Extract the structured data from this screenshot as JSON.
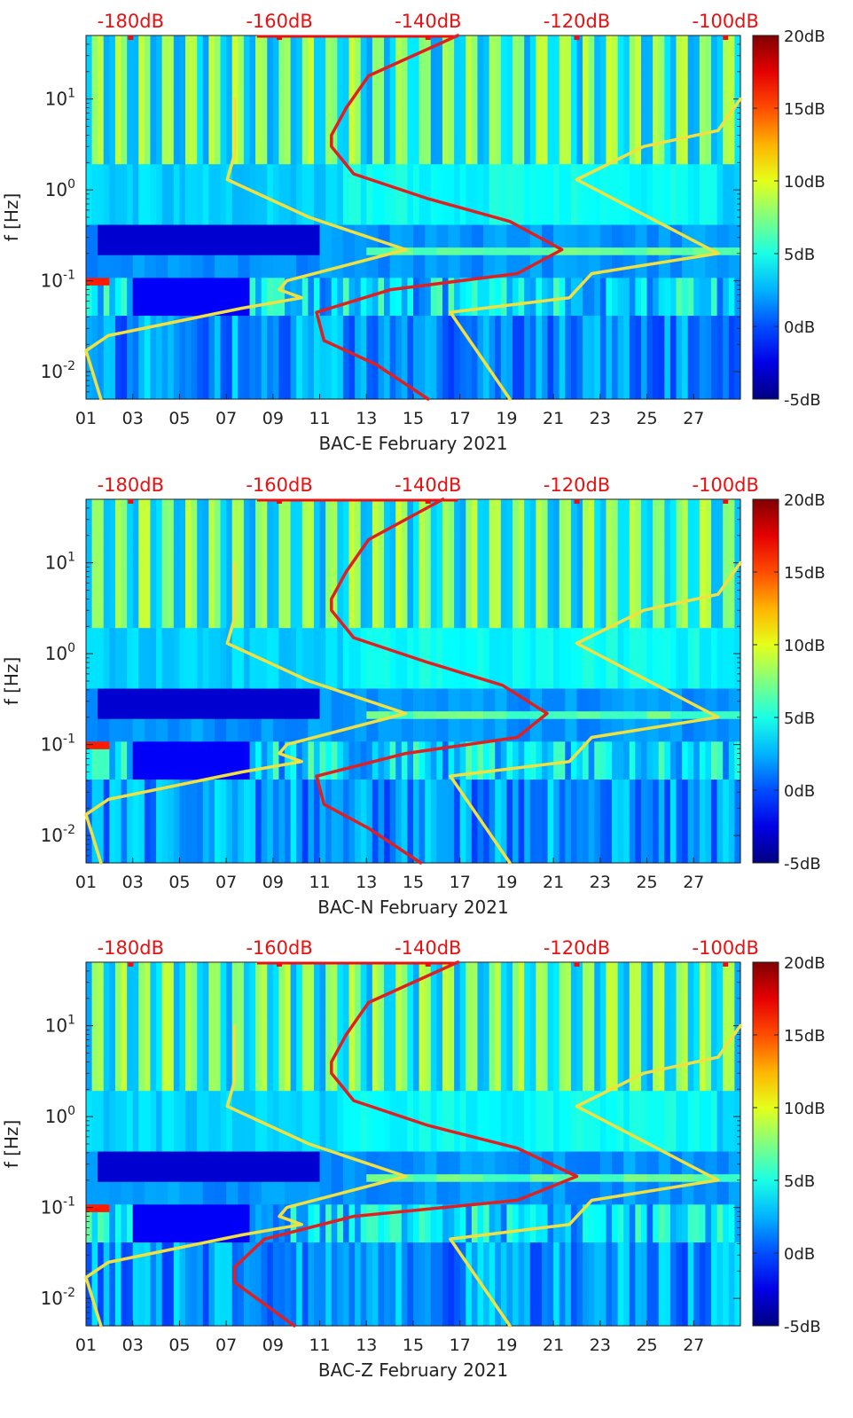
{
  "chart_data": [
    {
      "type": "heatmap",
      "title": "",
      "xlabel": "BAC-E February 2021",
      "ylabel": "f [Hz]",
      "x_unit": "day of February 2021",
      "x_ticks": [
        "01",
        "03",
        "05",
        "07",
        "09",
        "11",
        "13",
        "15",
        "17",
        "19",
        "21",
        "23",
        "25",
        "27"
      ],
      "xlim": [
        1,
        29
      ],
      "y_scale": "log",
      "ylim": [
        0.005,
        50
      ],
      "y_ticks": [
        "10^-2",
        "10^-1",
        "10^0",
        "10^1"
      ],
      "top_axis_ticks": [
        "-180dB",
        "-160dB",
        "-140dB",
        "-120dB",
        "-100dB"
      ],
      "top_axis_range_dB": [
        -186,
        -98
      ],
      "colorbar": {
        "ticks": [
          "20dB",
          "15dB",
          "10dB",
          "5dB",
          "0dB",
          "-5dB"
        ],
        "range_dB": [
          -5,
          20
        ],
        "colormap": "jet"
      },
      "line_colors": {
        "noise_models": "#f0e040",
        "median_psd": "#e02020",
        "top_axis": "#e81010"
      },
      "series": [
        {
          "name": "",
          "style": "noise-model-low",
          "color": "#f0e040",
          "points": [
            [
              -166,
              10
            ],
            [
              -166,
              2.5
            ],
            [
              -167,
              1.3
            ],
            [
              -156,
              0.5
            ],
            [
              -143,
              0.22
            ],
            [
              -159,
              0.1
            ],
            [
              -160,
              0.08
            ],
            [
              -157,
              0.065
            ],
            [
              -165,
              0.05
            ],
            [
              -183,
              0.025
            ],
            [
              -186,
              0.017
            ],
            [
              -184,
              0.005
            ]
          ]
        },
        {
          "name": "",
          "style": "noise-model-high",
          "color": "#f0e040",
          "points": [
            [
              -98,
              10
            ],
            [
              -101,
              4.5
            ],
            [
              -111,
              3
            ],
            [
              -120,
              1.3
            ],
            [
              -101,
              0.2
            ],
            [
              -118,
              0.12
            ],
            [
              -121,
              0.065
            ],
            [
              -137,
              0.045
            ],
            [
              -129,
              0.005
            ]
          ]
        },
        {
          "name": "",
          "style": "median-psd",
          "color": "#e02020",
          "points": [
            [
              -136,
              50
            ],
            [
              -148,
              18
            ],
            [
              -151,
              8
            ],
            [
              -153,
              4
            ],
            [
              -153,
              3
            ],
            [
              -150,
              1.5
            ],
            [
              -140,
              0.8
            ],
            [
              -129,
              0.45
            ],
            [
              -122,
              0.22
            ],
            [
              -128,
              0.12
            ],
            [
              -145,
              0.08
            ],
            [
              -155,
              0.045
            ],
            [
              -154,
              0.022
            ],
            [
              -147,
              0.012
            ],
            [
              -140,
              0.005
            ]
          ]
        }
      ]
    },
    {
      "type": "heatmap",
      "title": "",
      "xlabel": "BAC-N February 2021",
      "ylabel": "f [Hz]",
      "x_unit": "day of February 2021",
      "x_ticks": [
        "01",
        "03",
        "05",
        "07",
        "09",
        "11",
        "13",
        "15",
        "17",
        "19",
        "21",
        "23",
        "25",
        "27"
      ],
      "xlim": [
        1,
        29
      ],
      "y_scale": "log",
      "ylim": [
        0.005,
        50
      ],
      "y_ticks": [
        "10^-2",
        "10^-1",
        "10^0",
        "10^1"
      ],
      "top_axis_ticks": [
        "-180dB",
        "-160dB",
        "-140dB",
        "-120dB",
        "-100dB"
      ],
      "top_axis_range_dB": [
        -186,
        -98
      ],
      "colorbar": {
        "ticks": [
          "20dB",
          "15dB",
          "10dB",
          "5dB",
          "0dB",
          "-5dB"
        ],
        "range_dB": [
          -5,
          20
        ],
        "colormap": "jet"
      },
      "line_colors": {
        "noise_models": "#f0e040",
        "median_psd": "#e02020",
        "top_axis": "#e81010"
      },
      "series": [
        {
          "name": "",
          "style": "noise-model-low",
          "color": "#f0e040",
          "points": [
            [
              -166,
              10
            ],
            [
              -166,
              2.5
            ],
            [
              -167,
              1.3
            ],
            [
              -156,
              0.5
            ],
            [
              -143,
              0.22
            ],
            [
              -159,
              0.1
            ],
            [
              -160,
              0.08
            ],
            [
              -157,
              0.065
            ],
            [
              -165,
              0.05
            ],
            [
              -183,
              0.025
            ],
            [
              -186,
              0.017
            ],
            [
              -184,
              0.005
            ]
          ]
        },
        {
          "name": "",
          "style": "noise-model-high",
          "color": "#f0e040",
          "points": [
            [
              -98,
              10
            ],
            [
              -101,
              4.5
            ],
            [
              -111,
              3
            ],
            [
              -120,
              1.3
            ],
            [
              -101,
              0.2
            ],
            [
              -118,
              0.12
            ],
            [
              -121,
              0.065
            ],
            [
              -137,
              0.045
            ],
            [
              -129,
              0.005
            ]
          ]
        },
        {
          "name": "",
          "style": "median-psd",
          "color": "#e02020",
          "points": [
            [
              -138,
              50
            ],
            [
              -148,
              18
            ],
            [
              -151,
              8
            ],
            [
              -153,
              4
            ],
            [
              -153,
              3
            ],
            [
              -150,
              1.5
            ],
            [
              -140,
              0.8
            ],
            [
              -130,
              0.45
            ],
            [
              -124,
              0.22
            ],
            [
              -128,
              0.12
            ],
            [
              -143,
              0.08
            ],
            [
              -155,
              0.045
            ],
            [
              -154,
              0.022
            ],
            [
              -148,
              0.012
            ],
            [
              -141,
              0.005
            ]
          ]
        }
      ]
    },
    {
      "type": "heatmap",
      "title": "",
      "xlabel": "BAC-Z February 2021",
      "ylabel": "f [Hz]",
      "x_unit": "day of February 2021",
      "x_ticks": [
        "01",
        "03",
        "05",
        "07",
        "09",
        "11",
        "13",
        "15",
        "17",
        "19",
        "21",
        "23",
        "25",
        "27"
      ],
      "xlim": [
        1,
        29
      ],
      "y_scale": "log",
      "ylim": [
        0.005,
        50
      ],
      "y_ticks": [
        "10^-2",
        "10^-1",
        "10^0",
        "10^1"
      ],
      "top_axis_ticks": [
        "-180dB",
        "-160dB",
        "-140dB",
        "-120dB",
        "-100dB"
      ],
      "top_axis_range_dB": [
        -186,
        -98
      ],
      "colorbar": {
        "ticks": [
          "20dB",
          "15dB",
          "10dB",
          "5dB",
          "0dB",
          "-5dB"
        ],
        "range_dB": [
          -5,
          20
        ],
        "colormap": "jet"
      },
      "line_colors": {
        "noise_models": "#f0e040",
        "median_psd": "#e02020",
        "top_axis": "#e81010"
      },
      "series": [
        {
          "name": "",
          "style": "noise-model-low",
          "color": "#f0e040",
          "points": [
            [
              -166,
              10
            ],
            [
              -166,
              2.5
            ],
            [
              -167,
              1.3
            ],
            [
              -156,
              0.5
            ],
            [
              -143,
              0.22
            ],
            [
              -159,
              0.1
            ],
            [
              -160,
              0.08
            ],
            [
              -157,
              0.065
            ],
            [
              -165,
              0.05
            ],
            [
              -183,
              0.025
            ],
            [
              -186,
              0.017
            ],
            [
              -184,
              0.005
            ]
          ]
        },
        {
          "name": "",
          "style": "noise-model-high",
          "color": "#f0e040",
          "points": [
            [
              -98,
              10
            ],
            [
              -101,
              4.5
            ],
            [
              -111,
              3
            ],
            [
              -120,
              1.3
            ],
            [
              -101,
              0.2
            ],
            [
              -118,
              0.12
            ],
            [
              -121,
              0.065
            ],
            [
              -137,
              0.045
            ],
            [
              -129,
              0.005
            ]
          ]
        },
        {
          "name": "",
          "style": "median-psd",
          "color": "#e02020",
          "points": [
            [
              -136,
              50
            ],
            [
              -148,
              18
            ],
            [
              -151,
              8
            ],
            [
              -153,
              4
            ],
            [
              -153,
              3
            ],
            [
              -150,
              1.5
            ],
            [
              -140,
              0.8
            ],
            [
              -128,
              0.45
            ],
            [
              -120,
              0.22
            ],
            [
              -128,
              0.12
            ],
            [
              -150,
              0.08
            ],
            [
              -162,
              0.045
            ],
            [
              -166,
              0.022
            ],
            [
              -166,
              0.015
            ],
            [
              -158,
              0.005
            ]
          ]
        }
      ]
    }
  ]
}
